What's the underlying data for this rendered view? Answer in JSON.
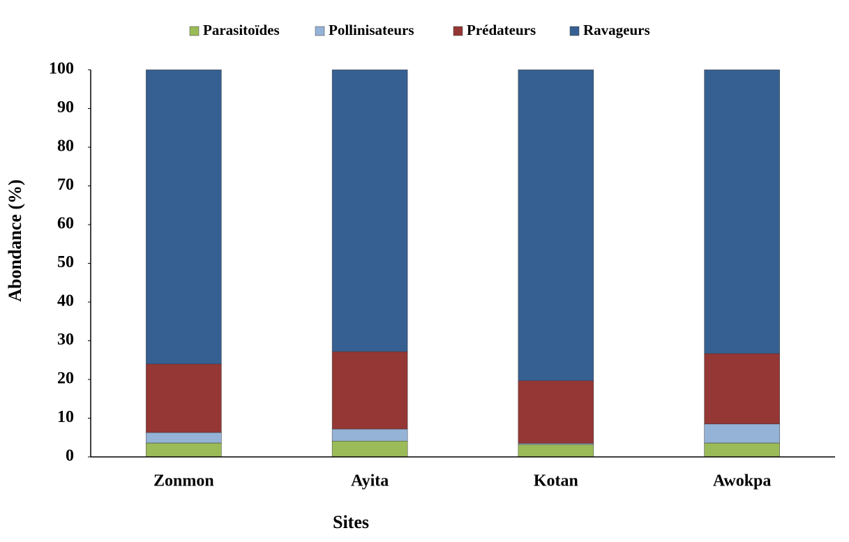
{
  "chart_data": {
    "type": "stacked-bar",
    "categories": [
      "Zonmon",
      "Ayita",
      "Kotan",
      "Awokpa"
    ],
    "series": [
      {
        "name": "Parasitoïdes",
        "color": "#9bbb59",
        "values": [
          3.6,
          4.1,
          3.2,
          3.6
        ]
      },
      {
        "name": "Pollinisateurs",
        "color": "#95b3d7",
        "values": [
          2.7,
          3.1,
          0.3,
          4.9
        ]
      },
      {
        "name": "Prédateurs",
        "color": "#953735",
        "values": [
          17.7,
          20.0,
          16.2,
          18.2
        ]
      },
      {
        "name": "Ravageurs",
        "color": "#376092",
        "values": [
          76.0,
          72.8,
          80.3,
          73.3
        ]
      }
    ],
    "ylim": [
      0,
      100
    ],
    "yticks": [
      0,
      10,
      20,
      30,
      40,
      50,
      60,
      70,
      80,
      90,
      100
    ],
    "x_label": "Sites",
    "y_label": "Abondance (%)",
    "legend": "top"
  }
}
